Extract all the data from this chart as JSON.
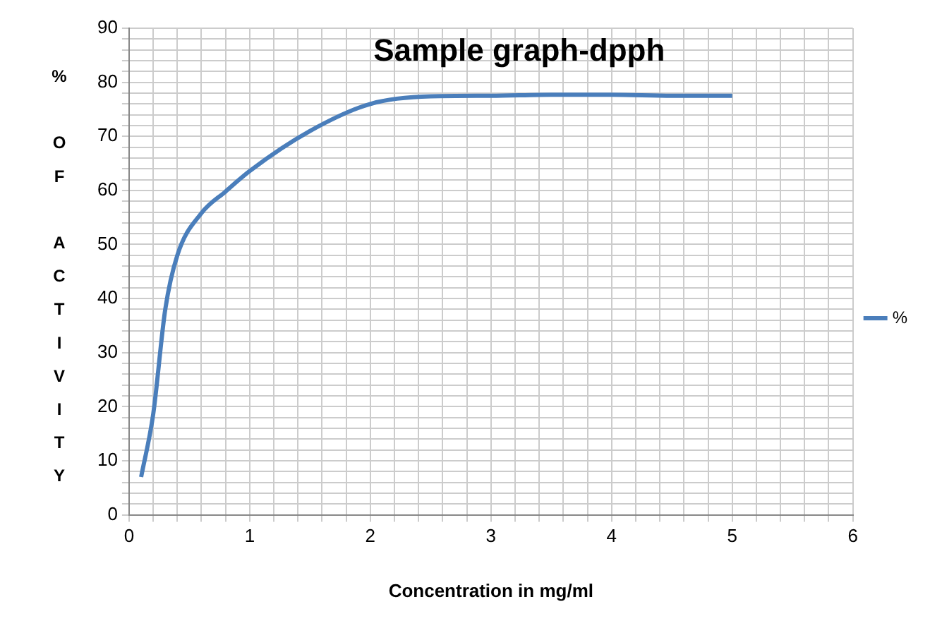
{
  "chart_data": {
    "type": "line",
    "title": "Sample graph-dpph",
    "xlabel": "Concentration in mg/ml",
    "ylabel": "% OF ACTIVITY",
    "x": [
      0.1,
      0.2,
      0.3,
      0.4,
      0.6,
      0.8,
      1,
      1.5,
      2,
      2.5,
      3,
      3.5,
      4,
      4.5,
      5
    ],
    "series": [
      {
        "name": "%",
        "color": "#4a7ebb",
        "values": [
          7,
          18.6,
          38,
          48,
          55.8,
          59.8,
          63.6,
          71,
          76,
          77.4,
          77.5,
          77.7,
          77.7,
          77.5,
          77.5
        ]
      }
    ],
    "xlim": [
      0,
      6
    ],
    "xticks": [
      0,
      {
        "value": 0.2,
        "label": null
      },
      {
        "value": 0.4,
        "label": null
      },
      {
        "value": 0.6,
        "label": null
      },
      {
        "value": 0.8,
        "label": null
      },
      1,
      {
        "value": 1.2,
        "label": null
      },
      {
        "value": 1.4,
        "label": null
      },
      {
        "value": 1.6,
        "label": null
      },
      {
        "value": 1.8,
        "label": null
      },
      2,
      {
        "value": 2.2,
        "label": null
      },
      {
        "value": 2.4,
        "label": null
      },
      {
        "value": 2.6,
        "label": null
      },
      {
        "value": 2.8,
        "label": null
      },
      3,
      {
        "value": 3.2,
        "label": null
      },
      {
        "value": 3.4,
        "label": null
      },
      {
        "value": 3.6,
        "label": null
      },
      {
        "value": 3.8,
        "label": null
      },
      4,
      {
        "value": 4.2,
        "label": null
      },
      {
        "value": 4.4,
        "label": null
      },
      {
        "value": 4.6,
        "label": null
      },
      {
        "value": 4.8,
        "label": null
      },
      5,
      {
        "value": 5.2,
        "label": null
      },
      {
        "value": 5.4,
        "label": null
      },
      {
        "value": 5.6,
        "label": null
      },
      {
        "value": 5.8,
        "label": null
      },
      6
    ],
    "ylim": [
      0,
      90
    ],
    "yticks": [
      0,
      {
        "value": 2,
        "label": null
      },
      {
        "value": 4,
        "label": null
      },
      {
        "value": 6,
        "label": null
      },
      {
        "value": 8,
        "label": null
      },
      10,
      {
        "value": 12,
        "label": null
      },
      {
        "value": 14,
        "label": null
      },
      {
        "value": 16,
        "label": null
      },
      {
        "value": 18,
        "label": null
      },
      20,
      {
        "value": 22,
        "label": null
      },
      {
        "value": 24,
        "label": null
      },
      {
        "value": 26,
        "label": null
      },
      {
        "value": 28,
        "label": null
      },
      30,
      {
        "value": 32,
        "label": null
      },
      {
        "value": 34,
        "label": null
      },
      {
        "value": 36,
        "label": null
      },
      {
        "value": 38,
        "label": null
      },
      40,
      {
        "value": 42,
        "label": null
      },
      {
        "value": 44,
        "label": null
      },
      {
        "value": 46,
        "label": null
      },
      {
        "value": 48,
        "label": null
      },
      50,
      {
        "value": 52,
        "label": null
      },
      {
        "value": 54,
        "label": null
      },
      {
        "value": 56,
        "label": null
      },
      {
        "value": 58,
        "label": null
      },
      60,
      {
        "value": 62,
        "label": null
      },
      {
        "value": 64,
        "label": null
      },
      {
        "value": 66,
        "label": null
      },
      {
        "value": 68,
        "label": null
      },
      70,
      {
        "value": 72,
        "label": null
      },
      {
        "value": 74,
        "label": null
      },
      {
        "value": 76,
        "label": null
      },
      {
        "value": 78,
        "label": null
      },
      80,
      {
        "value": 82,
        "label": null
      },
      {
        "value": 84,
        "label": null
      },
      {
        "value": 86,
        "label": null
      },
      {
        "value": 88,
        "label": null
      },
      90
    ],
    "grid": true,
    "legend": "right",
    "marker": "none",
    "line_style": "solid"
  }
}
